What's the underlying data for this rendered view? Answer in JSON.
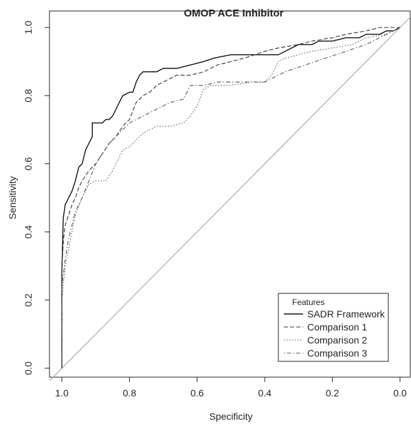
{
  "chart_data": {
    "type": "line",
    "title": "OMOP ACE Inhibitor",
    "xlabel": "Specificity",
    "ylabel": "Sensitivity",
    "x_reversed": true,
    "xlim": [
      1.0,
      0.0
    ],
    "ylim": [
      0.0,
      1.0
    ],
    "x_ticks": [
      1.0,
      0.8,
      0.6,
      0.4,
      0.2,
      0.0
    ],
    "x_tick_labels": [
      "1.0",
      "0.8",
      "0.6",
      "0.4",
      "0.2",
      "0.0"
    ],
    "y_ticks": [
      0.0,
      0.2,
      0.4,
      0.6,
      0.8,
      1.0
    ],
    "y_tick_labels": [
      "0.0",
      "0.2",
      "0.4",
      "0.6",
      "0.8",
      "1.0"
    ],
    "grid": false,
    "legend": {
      "title": "Features",
      "placement": "bottom-right"
    },
    "reference_line": {
      "x": [
        1.0,
        0.0
      ],
      "y": [
        0.0,
        1.0
      ],
      "color": "#aaaaaa"
    },
    "series": [
      {
        "name": "SADR Framework",
        "style": "solid",
        "color": "#111111",
        "x": [
          1.0,
          1.0,
          0.996,
          0.99,
          0.98,
          0.97,
          0.96,
          0.955,
          0.95,
          0.94,
          0.935,
          0.93,
          0.92,
          0.91,
          0.91,
          0.88,
          0.87,
          0.86,
          0.85,
          0.84,
          0.83,
          0.82,
          0.8,
          0.79,
          0.78,
          0.77,
          0.76,
          0.74,
          0.72,
          0.7,
          0.66,
          0.62,
          0.58,
          0.55,
          0.5,
          0.44,
          0.36,
          0.34,
          0.32,
          0.3,
          0.26,
          0.24,
          0.2,
          0.16,
          0.12,
          0.1,
          0.06,
          0.04,
          0.02,
          0.0
        ],
        "y": [
          0.0,
          0.28,
          0.44,
          0.48,
          0.5,
          0.52,
          0.55,
          0.57,
          0.59,
          0.6,
          0.62,
          0.64,
          0.66,
          0.68,
          0.72,
          0.72,
          0.73,
          0.73,
          0.74,
          0.76,
          0.78,
          0.8,
          0.81,
          0.81,
          0.84,
          0.86,
          0.87,
          0.87,
          0.87,
          0.88,
          0.88,
          0.89,
          0.9,
          0.91,
          0.92,
          0.92,
          0.92,
          0.93,
          0.94,
          0.95,
          0.95,
          0.96,
          0.96,
          0.97,
          0.97,
          0.98,
          0.98,
          0.99,
          0.99,
          1.0
        ]
      },
      {
        "name": "Comparison 1",
        "style": "dashed",
        "color": "#333333",
        "x": [
          1.0,
          1.0,
          0.995,
          0.99,
          0.98,
          0.97,
          0.96,
          0.95,
          0.94,
          0.92,
          0.9,
          0.88,
          0.86,
          0.84,
          0.82,
          0.8,
          0.78,
          0.76,
          0.74,
          0.72,
          0.7,
          0.68,
          0.66,
          0.62,
          0.58,
          0.54,
          0.5,
          0.46,
          0.4,
          0.36,
          0.3,
          0.26,
          0.2,
          0.16,
          0.1,
          0.06,
          0.0
        ],
        "y": [
          0.0,
          0.3,
          0.38,
          0.42,
          0.45,
          0.48,
          0.5,
          0.53,
          0.55,
          0.58,
          0.6,
          0.63,
          0.66,
          0.68,
          0.71,
          0.73,
          0.78,
          0.8,
          0.81,
          0.83,
          0.84,
          0.85,
          0.86,
          0.86,
          0.87,
          0.89,
          0.9,
          0.91,
          0.93,
          0.94,
          0.95,
          0.96,
          0.97,
          0.98,
          0.99,
          1.0,
          1.0
        ]
      },
      {
        "name": "Comparison 2",
        "style": "dotted",
        "color": "#555555",
        "x": [
          1.0,
          1.0,
          0.99,
          0.98,
          0.97,
          0.96,
          0.94,
          0.92,
          0.9,
          0.87,
          0.85,
          0.84,
          0.82,
          0.8,
          0.78,
          0.76,
          0.74,
          0.72,
          0.68,
          0.64,
          0.62,
          0.6,
          0.58,
          0.56,
          0.5,
          0.44,
          0.4,
          0.38,
          0.36,
          0.34,
          0.3,
          0.26,
          0.2,
          0.14,
          0.1,
          0.04,
          0.0
        ],
        "y": [
          0.0,
          0.2,
          0.3,
          0.35,
          0.4,
          0.45,
          0.5,
          0.54,
          0.55,
          0.55,
          0.58,
          0.6,
          0.64,
          0.65,
          0.67,
          0.69,
          0.7,
          0.71,
          0.71,
          0.72,
          0.74,
          0.77,
          0.82,
          0.83,
          0.83,
          0.84,
          0.84,
          0.86,
          0.9,
          0.91,
          0.92,
          0.93,
          0.94,
          0.95,
          0.97,
          0.98,
          1.0
        ]
      },
      {
        "name": "Comparison 3",
        "style": "dotdash",
        "color": "#555555",
        "x": [
          1.0,
          1.0,
          0.99,
          0.98,
          0.97,
          0.96,
          0.94,
          0.92,
          0.9,
          0.88,
          0.86,
          0.84,
          0.82,
          0.8,
          0.78,
          0.76,
          0.74,
          0.72,
          0.7,
          0.68,
          0.64,
          0.62,
          0.58,
          0.54,
          0.5,
          0.44,
          0.4,
          0.38,
          0.34,
          0.28,
          0.22,
          0.16,
          0.1,
          0.04,
          0.0
        ],
        "y": [
          0.0,
          0.24,
          0.32,
          0.38,
          0.42,
          0.46,
          0.5,
          0.55,
          0.6,
          0.63,
          0.66,
          0.68,
          0.7,
          0.72,
          0.73,
          0.74,
          0.75,
          0.76,
          0.77,
          0.78,
          0.79,
          0.83,
          0.83,
          0.84,
          0.84,
          0.84,
          0.84,
          0.85,
          0.87,
          0.89,
          0.91,
          0.93,
          0.95,
          0.98,
          1.0
        ]
      }
    ]
  }
}
